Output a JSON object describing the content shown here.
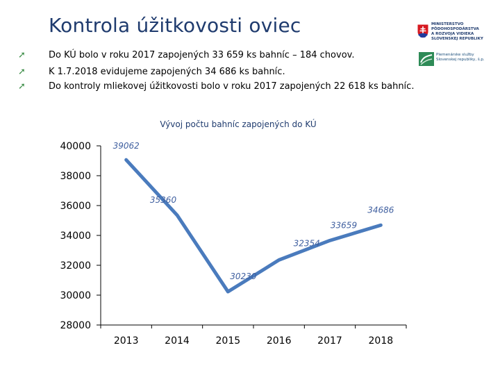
{
  "slide": {
    "title": "Kontrola úžitkovosti oviec",
    "bullets": [
      "Do KÚ bolo v roku 2017 zapojených 33 659 ks bahníc – 184 chovov.",
      "K 1.7.2018 evidujeme zapojených 34 686 ks bahníc.",
      "Do kontroly mliekovej úžitkovosti  bolo v roku 2017 zapojených 22 618 ks bahníc."
    ],
    "bullet_icon": "trend-arrow-icon"
  },
  "logos": {
    "ministry": "MINISTERSTVO PÔDOHOSPODÁRSTVA A ROZVOJA VIDIEKA SLOVENSKEJ REPUBLIKY",
    "ministry_lines": [
      "MINISTERSTVO",
      "PÔDOHOSPODÁRSTVA",
      "A ROZVOJA VIDIEKA",
      "SLOVENSKEJ REPUBLIKY"
    ],
    "breeding": "Plemenárske služby Slovenskej republiky, š.p.",
    "breeding_lines": [
      "Plemenárske služby",
      "Slovenskej republiky, š.p."
    ]
  },
  "colors": {
    "title": "#1f3b6e",
    "line": "#4a7bbd",
    "data_label": "#3f5f9f",
    "bullet_icon": "#3f8f4a"
  },
  "chart_data": {
    "type": "line",
    "title": "Vývoj počtu bahníc zapojených do KÚ",
    "xlabel": "",
    "ylabel": "",
    "categories": [
      "2013",
      "2014",
      "2015",
      "2016",
      "2017",
      "2018"
    ],
    "series": [
      {
        "values": [
          39062,
          35360,
          30230,
          32354,
          33659,
          34686
        ]
      }
    ],
    "data_labels": [
      "39062",
      "35360",
      "30230",
      "32354",
      "33659",
      "34686"
    ],
    "ylim": [
      28000,
      40000
    ],
    "yticks": [
      "40000",
      "38000",
      "36000",
      "34000",
      "32000",
      "30000",
      "28000"
    ],
    "grid": false,
    "legend": "none"
  }
}
